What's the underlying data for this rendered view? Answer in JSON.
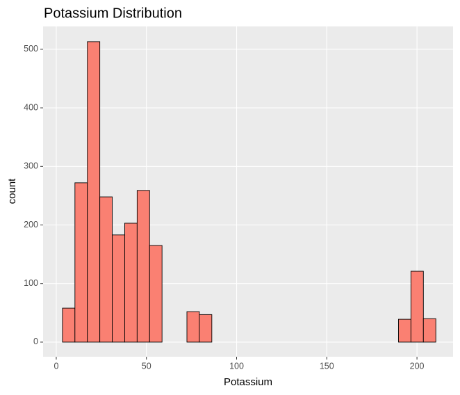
{
  "chart_data": {
    "type": "histogram",
    "title": "Potassium Distribution",
    "x_label": "Potassium",
    "y_label": "count",
    "bins": [
      3.45,
      10.35,
      17.25,
      24.15,
      31.05,
      37.95,
      44.85,
      51.75,
      58.65,
      65.55,
      72.45,
      79.35,
      86.25,
      93.15,
      100.05,
      106.95,
      113.85,
      120.75,
      127.65,
      134.55,
      141.45,
      148.35,
      155.25,
      162.15,
      169.05,
      175.95,
      182.85,
      189.75,
      196.65,
      203.55,
      210.45
    ],
    "values": [
      58,
      272,
      513,
      248,
      183,
      203,
      259,
      165,
      0,
      0,
      52,
      47,
      0,
      0,
      0,
      0,
      0,
      0,
      0,
      0,
      0,
      0,
      0,
      0,
      0,
      0,
      0,
      39,
      121,
      40
    ],
    "color": "#FA8072",
    "edge_color": "#000000",
    "xlim": [
      -7.3,
      220
    ],
    "xticks": [
      0,
      50,
      100,
      150,
      200
    ],
    "ylim": [
      -25,
      539
    ],
    "yticks": [
      0,
      100,
      200,
      300,
      400,
      500
    ],
    "grid": true
  }
}
